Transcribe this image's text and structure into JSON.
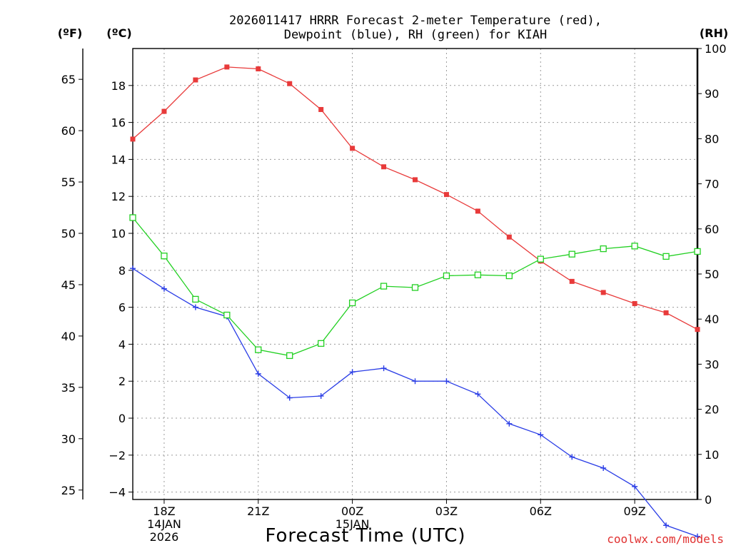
{
  "chart_data": {
    "type": "line",
    "title_line1": "2026011417 HRRR Forecast 2-meter Temperature (red),",
    "title_line2": "Dewpoint (blue), RH (green) for KIAH",
    "xlabel": "Forecast Time (UTC)",
    "credit": "coolwx.com/models",
    "left_axis_f_label": "(ºF)",
    "left_axis_c_label": "(ºC)",
    "right_axis_label": "(RH)",
    "x_hours": [
      17,
      18,
      19,
      20,
      21,
      22,
      23,
      24,
      25,
      26,
      27,
      28,
      29,
      30,
      31,
      32,
      33,
      34,
      35
    ],
    "xlim": [
      17,
      35
    ],
    "x_ticks": [
      {
        "hour": 18,
        "lines": [
          "18Z",
          "14JAN",
          "2026"
        ]
      },
      {
        "hour": 21,
        "lines": [
          "21Z"
        ]
      },
      {
        "hour": 24,
        "lines": [
          "00Z",
          "15JAN"
        ]
      },
      {
        "hour": 27,
        "lines": [
          "03Z"
        ]
      },
      {
        "hour": 30,
        "lines": [
          "06Z"
        ]
      },
      {
        "hour": 33,
        "lines": [
          "09Z"
        ]
      }
    ],
    "c_axis": {
      "ylim": [
        -4.4,
        20.0
      ],
      "ticks": [
        -4,
        -2,
        0,
        2,
        4,
        6,
        8,
        10,
        12,
        14,
        16,
        18
      ],
      "tick_labels": [
        "−4",
        "−2",
        "0",
        "2",
        "4",
        "6",
        "8",
        "10",
        "12",
        "14",
        "16",
        "18"
      ]
    },
    "f_axis": {
      "ticks": [
        25,
        30,
        35,
        40,
        45,
        50,
        55,
        60,
        65
      ],
      "tick_labels": [
        "25",
        "30",
        "35",
        "40",
        "45",
        "50",
        "55",
        "60",
        "65"
      ]
    },
    "rh_axis": {
      "ylim": [
        0,
        100
      ],
      "ticks": [
        0,
        10,
        20,
        30,
        40,
        50,
        60,
        70,
        80,
        90,
        100
      ],
      "tick_labels": [
        "0",
        "10",
        "20",
        "30",
        "40",
        "50",
        "60",
        "70",
        "80",
        "90",
        "100"
      ]
    },
    "series": [
      {
        "name": "Temperature",
        "units": "C",
        "color": "#e83a3a",
        "marker": "filled-square",
        "values": [
          15.1,
          16.6,
          18.3,
          19.0,
          18.9,
          18.1,
          16.7,
          14.6,
          13.6,
          12.9,
          12.1,
          11.2,
          9.8,
          8.5,
          7.4,
          6.8,
          6.2,
          5.7,
          4.8
        ]
      },
      {
        "name": "Dewpoint",
        "units": "C",
        "color": "#2a3de6",
        "marker": "plus",
        "values": [
          8.1,
          7.0,
          6.0,
          5.5,
          2.4,
          1.1,
          1.2,
          2.5,
          2.7,
          2.0,
          2.0,
          1.3,
          -0.3,
          -0.9,
          -2.1,
          -2.7,
          -3.7,
          -5.8,
          -6.4
        ]
      },
      {
        "name": "RH",
        "units": "%",
        "color": "#22d022",
        "marker": "open-square",
        "values": [
          62.5,
          54.0,
          44.4,
          40.9,
          33.2,
          31.9,
          34.6,
          43.6,
          47.3,
          47.0,
          49.6,
          49.8,
          49.6,
          53.3,
          54.4,
          55.6,
          56.2,
          53.9,
          55.0
        ]
      }
    ]
  }
}
